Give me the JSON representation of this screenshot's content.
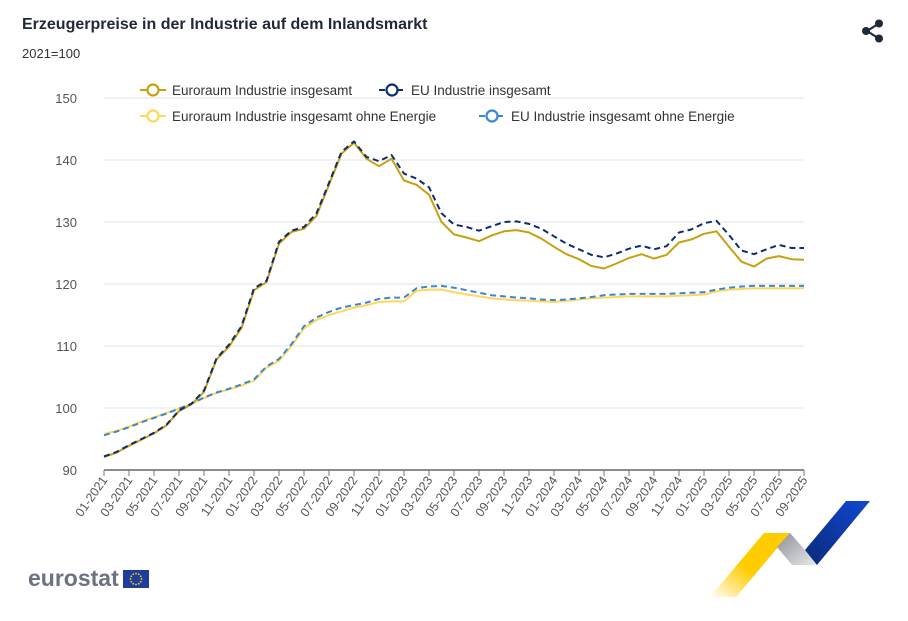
{
  "header": {
    "title": "Erzeugerpreise in der Industrie auf dem Inlandsmarkt",
    "subtitle": "2021=100",
    "share_icon": "share-icon"
  },
  "footer": {
    "logo_text": "eurostat",
    "flag_icon": "eu-flag-icon"
  },
  "chart_data": {
    "type": "line",
    "title": "Erzeugerpreise in der Industrie auf dem Inlandsmarkt",
    "subtitle": "2021=100",
    "xlabel": "",
    "ylabel": "",
    "ylim": [
      90,
      150
    ],
    "yticks": [
      90,
      100,
      110,
      120,
      130,
      140,
      150
    ],
    "grid": true,
    "legend_position": "top",
    "x_tick_labels": [
      "01-2021",
      "03-2021",
      "05-2021",
      "07-2021",
      "09-2021",
      "11-2021",
      "01-2022",
      "03-2022",
      "05-2022",
      "07-2022",
      "09-2022",
      "11-2022",
      "01-2023",
      "03-2023",
      "05-2023",
      "07-2023",
      "09-2023",
      "11-2023",
      "01-2024",
      "03-2024",
      "05-2024",
      "07-2024",
      "09-2024",
      "11-2024",
      "01-2025",
      "03-2025",
      "05-2025",
      "07-2025",
      "09-2025"
    ],
    "x": [
      "01-2021",
      "02-2021",
      "03-2021",
      "04-2021",
      "05-2021",
      "06-2021",
      "07-2021",
      "08-2021",
      "09-2021",
      "10-2021",
      "11-2021",
      "12-2021",
      "01-2022",
      "02-2022",
      "03-2022",
      "04-2022",
      "05-2022",
      "06-2022",
      "07-2022",
      "08-2022",
      "09-2022",
      "10-2022",
      "11-2022",
      "12-2022",
      "01-2023",
      "02-2023",
      "03-2023",
      "04-2023",
      "05-2023",
      "06-2023",
      "07-2023",
      "08-2023",
      "09-2023",
      "10-2023",
      "11-2023",
      "12-2023",
      "01-2024",
      "02-2024",
      "03-2024",
      "04-2024",
      "05-2024",
      "06-2024",
      "07-2024",
      "08-2024",
      "09-2024",
      "10-2024",
      "11-2024",
      "12-2024",
      "01-2025",
      "02-2025",
      "03-2025",
      "04-2025",
      "05-2025",
      "06-2025",
      "07-2025",
      "08-2025",
      "09-2025"
    ],
    "series": [
      {
        "name": "Euroraum Industrie insgesamt",
        "color": "#c9a012",
        "dashed": false,
        "values": [
          92.1,
          92.8,
          93.9,
          94.9,
          95.9,
          97.2,
          99.5,
          100.6,
          102.6,
          107.8,
          109.9,
          112.9,
          119.0,
          120.3,
          126.5,
          128.4,
          128.9,
          131.0,
          136.0,
          141.0,
          142.8,
          140.2,
          139.0,
          140.2,
          136.7,
          136.0,
          134.4,
          130.0,
          128.0,
          127.5,
          126.9,
          127.8,
          128.5,
          128.7,
          128.3,
          127.3,
          126.0,
          124.8,
          124.0,
          122.9,
          122.5,
          123.3,
          124.2,
          124.8,
          124.1,
          124.7,
          126.7,
          127.2,
          128.1,
          128.5,
          126.0,
          123.6,
          122.8,
          124.1,
          124.5,
          124.0,
          123.9
        ]
      },
      {
        "name": "EU Industrie insgesamt",
        "color": "#0d2d6e",
        "dashed": true,
        "values": [
          92.2,
          92.9,
          94.0,
          95.0,
          96.0,
          97.3,
          99.6,
          100.7,
          102.8,
          108.0,
          110.2,
          113.2,
          119.3,
          120.5,
          126.8,
          128.6,
          129.2,
          131.4,
          136.3,
          141.3,
          143.0,
          140.5,
          139.8,
          140.8,
          137.8,
          137.0,
          135.6,
          131.4,
          129.6,
          129.2,
          128.6,
          129.3,
          130.0,
          130.1,
          129.7,
          128.9,
          127.7,
          126.5,
          125.6,
          124.7,
          124.3,
          124.9,
          125.7,
          126.2,
          125.6,
          126.1,
          128.3,
          128.8,
          129.8,
          130.2,
          127.9,
          125.4,
          124.8,
          125.6,
          126.3,
          125.8,
          125.8
        ]
      },
      {
        "name": "Euroraum Industrie insgesamt ohne Energie",
        "color": "#ffd85a",
        "dashed": false,
        "values": [
          95.8,
          96.3,
          97.0,
          97.8,
          98.5,
          99.2,
          99.9,
          100.7,
          101.6,
          102.4,
          103.0,
          103.6,
          104.4,
          106.5,
          107.6,
          110.0,
          112.8,
          114.2,
          115.0,
          115.6,
          116.2,
          116.6,
          117.1,
          117.2,
          117.2,
          118.9,
          119.1,
          119.1,
          118.7,
          118.3,
          118.0,
          117.7,
          117.5,
          117.4,
          117.3,
          117.2,
          117.1,
          117.3,
          117.5,
          117.7,
          117.8,
          117.9,
          118.0,
          118.0,
          118.0,
          118.0,
          118.1,
          118.2,
          118.3,
          118.8,
          119.1,
          119.2,
          119.3,
          119.3,
          119.3,
          119.3,
          119.3
        ]
      },
      {
        "name": "EU Industrie insgesamt ohne Energie",
        "color": "#3a86d8",
        "dashed": true,
        "values": [
          95.6,
          96.2,
          96.9,
          97.7,
          98.4,
          99.1,
          99.9,
          100.7,
          101.7,
          102.5,
          103.1,
          103.8,
          104.6,
          106.7,
          107.9,
          110.3,
          113.2,
          114.6,
          115.5,
          116.2,
          116.6,
          117.0,
          117.6,
          117.8,
          117.8,
          119.3,
          119.6,
          119.7,
          119.4,
          119.0,
          118.6,
          118.2,
          118.0,
          117.8,
          117.7,
          117.5,
          117.4,
          117.5,
          117.7,
          117.9,
          118.2,
          118.3,
          118.4,
          118.4,
          118.4,
          118.4,
          118.5,
          118.6,
          118.7,
          119.1,
          119.4,
          119.6,
          119.7,
          119.7,
          119.7,
          119.7,
          119.7
        ]
      }
    ]
  }
}
